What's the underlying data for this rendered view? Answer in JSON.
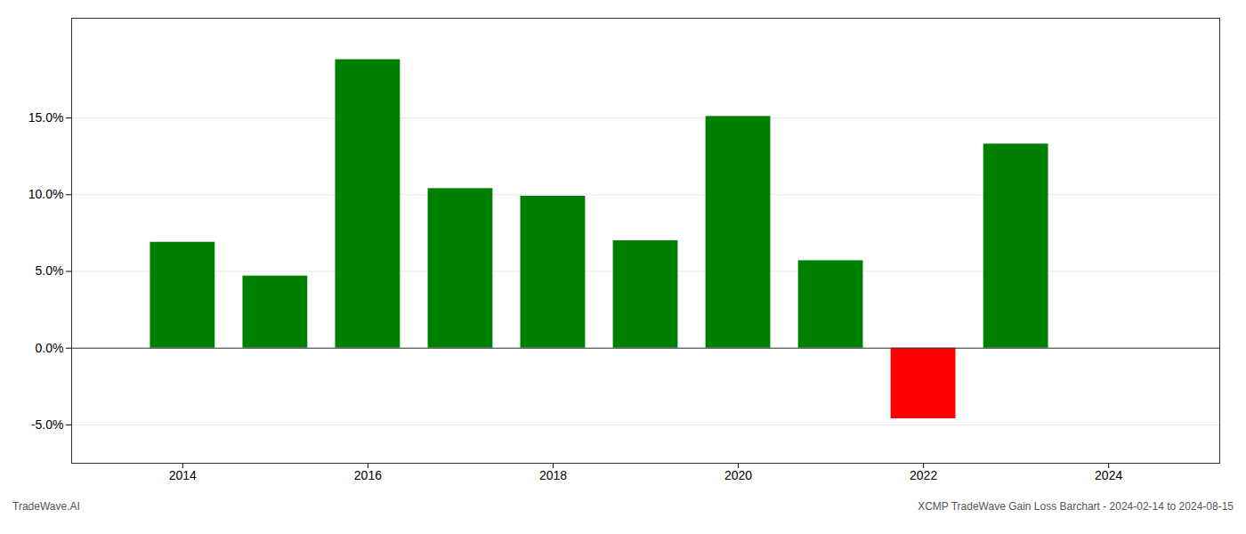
{
  "chart_data": {
    "type": "bar",
    "title": "XCMP TradeWave Gain Loss Barchart - 2024-02-14 to 2024-08-15",
    "annotations": [
      "TradeWave.AI"
    ],
    "x": [
      2014,
      2015,
      2016,
      2017,
      2018,
      2019,
      2020,
      2021,
      2022,
      2023
    ],
    "values": [
      0.069,
      0.047,
      0.188,
      0.104,
      0.099,
      0.07,
      0.151,
      0.057,
      -0.046,
      0.133
    ],
    "colors": [
      "#008000",
      "#008000",
      "#008000",
      "#008000",
      "#008000",
      "#008000",
      "#008000",
      "#008000",
      "#ff0000",
      "#008000"
    ],
    "xlim": [
      2012.8,
      2025.2
    ],
    "xticks": [
      2014,
      2016,
      2018,
      2020,
      2022,
      2024
    ],
    "ylim": [
      -0.075,
      0.215
    ],
    "yticks": [
      {
        "value": -0.05,
        "label": "-5.0%"
      },
      {
        "value": 0.0,
        "label": "0.0%"
      },
      {
        "value": 0.05,
        "label": "5.0%"
      },
      {
        "value": 0.1,
        "label": "10.0%"
      },
      {
        "value": 0.15,
        "label": "15.0%"
      }
    ],
    "grid": true
  }
}
